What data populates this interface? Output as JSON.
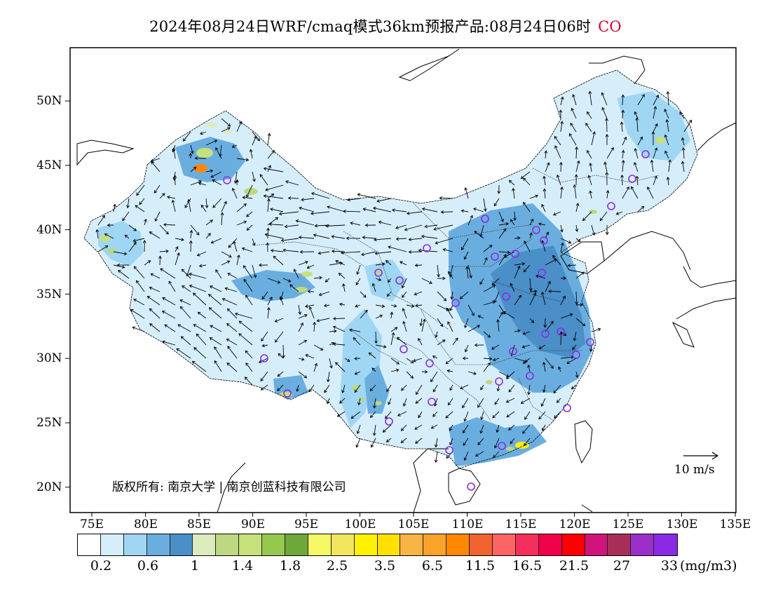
{
  "title": {
    "main": "2024年08月24日WRF/cmaq模式36km预报产品:08月24日06时",
    "species": "CO"
  },
  "map": {
    "lat_labels": [
      "50N",
      "45N",
      "40N",
      "35N",
      "30N",
      "25N",
      "20N"
    ],
    "lon_labels": [
      "75E",
      "80E",
      "85E",
      "90E",
      "95E",
      "100E",
      "105E",
      "110E",
      "115E",
      "120E",
      "125E",
      "130E",
      "135E"
    ],
    "copyright": "版权所有: 南京大学 | 南京创蓝科技有限公司",
    "wind_reference": "10 m/s",
    "colors": {
      "frame": "#000000",
      "station_marker": "#8a2be2"
    }
  },
  "colorbar": {
    "colors": [
      "#ffffff",
      "#d6eefa",
      "#9fd6f4",
      "#6aaee0",
      "#4a8fc8",
      "#dcebbc",
      "#bcd880",
      "#c6e07a",
      "#96c850",
      "#6fa83a",
      "#f4f864",
      "#f2e65e",
      "#fff200",
      "#ffe000",
      "#f8b444",
      "#faa32a",
      "#ff8800",
      "#f0622f",
      "#ff6464",
      "#f42e5a",
      "#f00048",
      "#ff0000",
      "#d0147c",
      "#a82e5a",
      "#9a30c8",
      "#8a2ae4"
    ],
    "labels": [
      "0.2",
      "0.6",
      "1",
      "1.4",
      "1.8",
      "2.5",
      "3.5",
      "6.5",
      "11.5",
      "16.5",
      "21.5",
      "27",
      "33"
    ],
    "unit": "(mg/m3)"
  }
}
